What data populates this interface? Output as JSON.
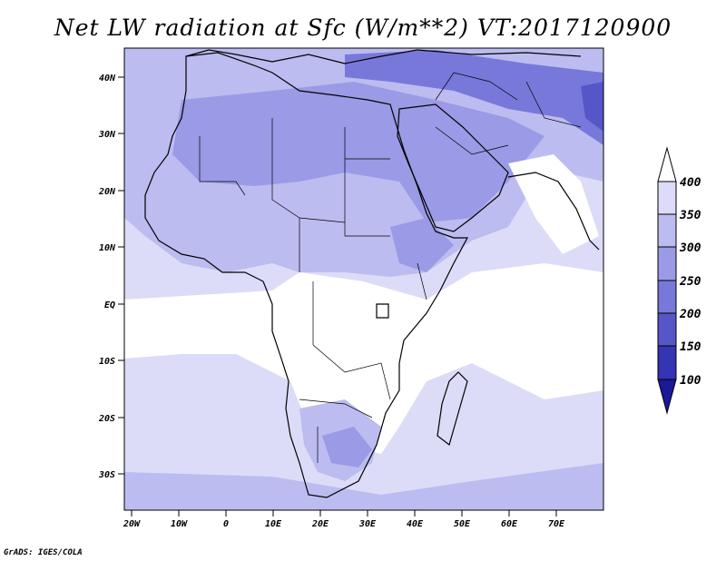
{
  "title": "Net LW radiation at Sfc (W/m**2) VT:2017120900",
  "credit": "GrADS: IGES/COLA",
  "map": {
    "y_ticks": [
      "40N",
      "30N",
      "20N",
      "10N",
      "EQ",
      "10S",
      "20S",
      "30S"
    ],
    "x_ticks": [
      "20W",
      "10W",
      "0",
      "10E",
      "20E",
      "30E",
      "40E",
      "50E",
      "60E",
      "70E"
    ]
  },
  "colorbar": {
    "labels": [
      "400",
      "350",
      "300",
      "250",
      "200",
      "150",
      "100"
    ],
    "colors": [
      "#ffffff",
      "#dcdcf8",
      "#bcbcf0",
      "#9a9ae6",
      "#7878da",
      "#5656c8",
      "#3434b4",
      "#1a1a96"
    ]
  }
}
